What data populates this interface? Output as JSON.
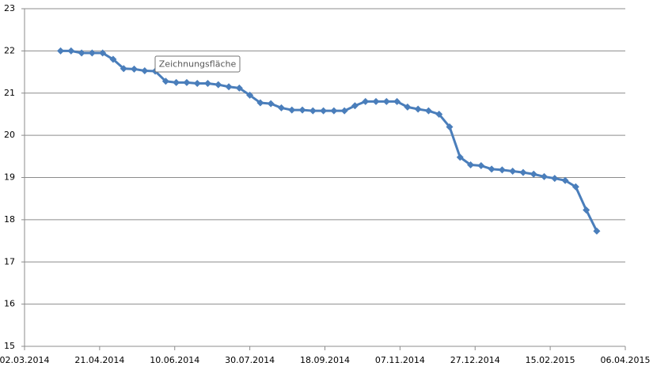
{
  "chart_data": {
    "type": "line",
    "tooltip": "Zeichnungsfläche",
    "x": [
      "2014-03-26",
      "2014-04-02",
      "2014-04-09",
      "2014-04-16",
      "2014-04-23",
      "2014-04-30",
      "2014-05-07",
      "2014-05-14",
      "2014-05-21",
      "2014-05-28",
      "2014-06-04",
      "2014-06-11",
      "2014-06-18",
      "2014-06-25",
      "2014-07-02",
      "2014-07-09",
      "2014-07-16",
      "2014-07-23",
      "2014-07-30",
      "2014-08-06",
      "2014-08-13",
      "2014-08-20",
      "2014-08-27",
      "2014-09-03",
      "2014-09-10",
      "2014-09-17",
      "2014-09-24",
      "2014-10-01",
      "2014-10-08",
      "2014-10-15",
      "2014-10-22",
      "2014-10-29",
      "2014-11-05",
      "2014-11-12",
      "2014-11-19",
      "2014-11-26",
      "2014-12-03",
      "2014-12-10",
      "2014-12-17",
      "2014-12-24",
      "2014-12-31",
      "2015-01-07",
      "2015-01-14",
      "2015-01-21",
      "2015-01-28",
      "2015-02-04",
      "2015-02-11",
      "2015-02-18",
      "2015-02-25",
      "2015-03-04",
      "2015-03-11",
      "2015-03-18"
    ],
    "series": [
      {
        "color": "#4a7ebb",
        "values": [
          22.0,
          22.0,
          21.95,
          21.95,
          21.95,
          21.8,
          21.58,
          21.57,
          21.53,
          21.52,
          21.28,
          21.25,
          21.25,
          21.23,
          21.23,
          21.2,
          21.15,
          21.12,
          20.95,
          20.77,
          20.75,
          20.65,
          20.6,
          20.6,
          20.58,
          20.58,
          20.58,
          20.58,
          20.7,
          20.8,
          20.8,
          20.8,
          20.8,
          20.67,
          20.62,
          20.58,
          20.5,
          20.2,
          19.48,
          19.3,
          19.28,
          19.2,
          19.18,
          19.15,
          19.12,
          19.08,
          19.02,
          18.98,
          18.93,
          18.78,
          18.23,
          17.73
        ]
      }
    ],
    "xlim": [
      "2014-03-02",
      "2015-04-06"
    ],
    "xticks": [
      {
        "value": "2014-03-02",
        "label": "02.03.2014"
      },
      {
        "value": "2014-04-21",
        "label": "21.04.2014"
      },
      {
        "value": "2014-06-10",
        "label": "10.06.2014"
      },
      {
        "value": "2014-07-30",
        "label": "30.07.2014"
      },
      {
        "value": "2014-09-18",
        "label": "18.09.2014"
      },
      {
        "value": "2014-11-07",
        "label": "07.11.2014"
      },
      {
        "value": "2014-12-27",
        "label": "27.12.2014"
      },
      {
        "value": "2015-02-15",
        "label": "15.02.2015"
      },
      {
        "value": "2015-04-06",
        "label": "06.04.2015"
      }
    ],
    "ylim": [
      15,
      23
    ],
    "yticks": [
      15,
      16,
      17,
      18,
      19,
      20,
      21,
      22,
      23
    ],
    "grid": true
  }
}
